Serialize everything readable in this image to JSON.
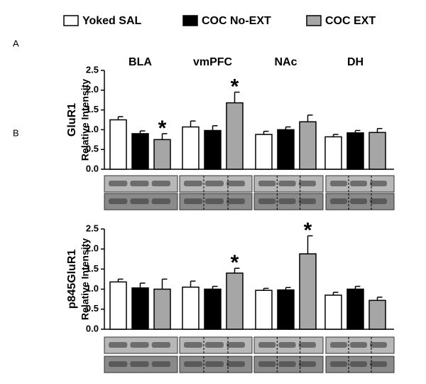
{
  "panel_labels": [
    "A",
    "B"
  ],
  "chart_data": [
    {
      "type": "bar",
      "title": "GluR1",
      "y_label": "Relative Intensity",
      "categories": [
        "BLA",
        "vmPFC",
        "NAc",
        "DH"
      ],
      "series": [
        {
          "name": "Yoked SAL",
          "color": "#ffffff",
          "values": [
            1.25,
            1.07,
            0.88,
            0.82
          ],
          "errors": [
            0.08,
            0.15,
            0.08,
            0.06
          ],
          "markers": [
            null,
            null,
            null,
            null
          ]
        },
        {
          "name": "COC No-EXT",
          "color": "#000000",
          "values": [
            0.9,
            0.98,
            1.0,
            0.92
          ],
          "errors": [
            0.07,
            0.12,
            0.07,
            0.06
          ],
          "markers": [
            null,
            null,
            null,
            null
          ]
        },
        {
          "name": "COC EXT",
          "color": "#a6a6a6",
          "values": [
            0.75,
            1.68,
            1.2,
            0.93
          ],
          "errors": [
            0.15,
            0.27,
            0.17,
            0.1
          ],
          "markers": [
            "*",
            "*",
            null,
            null
          ]
        }
      ],
      "ylim": [
        0,
        2.5
      ],
      "yticks": [
        {
          "value": 0,
          "label": "0.0"
        },
        0.5,
        {
          "value": 1,
          "label": "1.0"
        },
        1.5,
        {
          "value": 2,
          "label": "2.0"
        },
        2.5
      ]
    },
    {
      "type": "bar",
      "title": "p845GluR1",
      "y_label": "Relative Intensity",
      "series": [
        {
          "color": "#ffffff",
          "values": [
            1.18,
            1.05,
            0.97,
            0.85
          ],
          "errors": [
            0.07,
            0.15,
            0.05,
            0.07
          ],
          "markers": [
            null,
            null,
            null,
            null
          ]
        },
        {
          "color": "#000000",
          "values": [
            1.03,
            1.0,
            0.98,
            1.0
          ],
          "errors": [
            0.12,
            0.07,
            0.06,
            0.07
          ],
          "markers": [
            null,
            null,
            null,
            null
          ]
        },
        {
          "color": "#a6a6a6",
          "values": [
            1.0,
            1.4,
            1.88,
            0.72
          ],
          "errors": [
            0.25,
            0.12,
            0.45,
            0.08
          ],
          "markers": [
            null,
            "*",
            "*",
            null
          ]
        }
      ],
      "ylim": [
        0,
        2.5
      ],
      "yticks": [
        {
          "value": 0,
          "label": "0.0"
        },
        0.5,
        {
          "value": 1,
          "label": "1.0"
        },
        1.5,
        {
          "value": 2,
          "label": "2.0"
        },
        2.5
      ]
    }
  ]
}
